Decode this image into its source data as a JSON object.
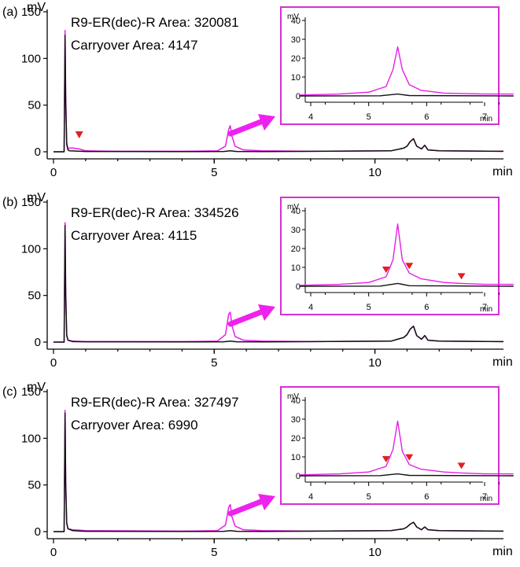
{
  "colors": {
    "sample": "#e81ee8",
    "carryover": "#111111",
    "inset_border": "#d530d5",
    "arrow": "#ee22ee",
    "marker": "#e02020"
  },
  "chart_data": [
    {
      "panel_label": "(a)",
      "type": "line",
      "ylabel": "mV",
      "xlabel": "min",
      "xlim": [
        0,
        14
      ],
      "ylim": [
        -5,
        155
      ],
      "xticks": [
        0,
        5,
        10
      ],
      "yticks": [
        0,
        50,
        100,
        150
      ],
      "annotations": [
        "R9-ER(dec)-R Area: 320081",
        "Carryover Area: 4147"
      ],
      "series": [
        {
          "name": "R9-ER(dec)-R",
          "x": [
            0,
            0.33,
            0.36,
            0.38,
            0.41,
            0.45,
            0.5,
            0.6,
            0.8,
            1.0,
            2,
            3,
            4,
            5.1,
            5.35,
            5.45,
            5.5,
            5.55,
            5.65,
            5.9,
            6.5,
            8,
            10.5,
            10.9,
            11.0,
            11.1,
            11.2,
            11.3,
            11.45,
            11.55,
            11.65,
            12,
            14
          ],
          "y": [
            0,
            0,
            130,
            60,
            10,
            3,
            4,
            4,
            3,
            1,
            0.5,
            0.5,
            0.5,
            1,
            6,
            24,
            28,
            17,
            6,
            2,
            1,
            0.5,
            1,
            4,
            6,
            11,
            14,
            6,
            3,
            7,
            2,
            1,
            0.5
          ]
        },
        {
          "name": "Carryover",
          "x": [
            0,
            0.33,
            0.36,
            0.38,
            0.41,
            0.45,
            0.5,
            1,
            4,
            5.3,
            5.5,
            5.7,
            6.5,
            10.5,
            10.9,
            11.0,
            11.1,
            11.2,
            11.3,
            11.45,
            11.55,
            11.65,
            12,
            14
          ],
          "y": [
            0,
            0,
            125,
            55,
            8,
            2,
            1,
            0.3,
            0.2,
            0.3,
            1,
            0.3,
            0.2,
            1,
            4,
            6,
            11,
            14,
            6,
            3,
            7,
            2,
            1,
            0.5
          ]
        }
      ],
      "markers_x": [
        0.8
      ],
      "inset": {
        "ylabel": "mV",
        "xlabel": "min",
        "xlim": [
          3.8,
          7.5
        ],
        "ylim": [
          -3,
          43
        ],
        "xticks": [
          4,
          5,
          6,
          7
        ],
        "yticks": [
          0,
          10,
          20,
          30,
          40
        ],
        "series": [
          {
            "name": "R9-ER(dec)-R",
            "x": [
              3.8,
              4.5,
              5.0,
              5.3,
              5.42,
              5.5,
              5.58,
              5.7,
              5.9,
              6.3,
              7.0,
              7.5
            ],
            "y": [
              0.5,
              1,
              2,
              5,
              14,
              26,
              14,
              6,
              3,
              1.5,
              1,
              1
            ]
          },
          {
            "name": "Carryover",
            "x": [
              3.8,
              5.2,
              5.5,
              5.7,
              7.5
            ],
            "y": [
              0,
              0.1,
              1,
              0.2,
              0
            ]
          }
        ],
        "markers_x": []
      }
    },
    {
      "panel_label": "(b)",
      "type": "line",
      "ylabel": "mV",
      "xlabel": "min",
      "xlim": [
        0,
        14
      ],
      "ylim": [
        -5,
        155
      ],
      "xticks": [
        0,
        5,
        10
      ],
      "yticks": [
        0,
        50,
        100,
        150
      ],
      "annotations": [
        "R9-ER(dec)-R Area: 334526",
        "Carryover Area: 4115"
      ],
      "series": [
        {
          "name": "R9-ER(dec)-R",
          "x": [
            0,
            0.33,
            0.36,
            0.38,
            0.41,
            0.45,
            0.6,
            1,
            4,
            5.1,
            5.35,
            5.45,
            5.5,
            5.55,
            5.65,
            5.9,
            6.5,
            8,
            10.5,
            10.9,
            11.0,
            11.1,
            11.2,
            11.3,
            11.45,
            11.55,
            11.65,
            12,
            14
          ],
          "y": [
            0,
            0,
            128,
            55,
            8,
            2,
            1,
            0.5,
            0.5,
            1,
            8,
            30,
            32,
            18,
            6,
            2,
            1,
            0.5,
            1,
            5,
            8,
            14,
            17,
            7,
            3,
            7,
            2,
            1,
            0.5
          ]
        },
        {
          "name": "Carryover",
          "x": [
            0,
            0.33,
            0.36,
            0.38,
            0.41,
            0.45,
            0.6,
            1,
            4,
            5.3,
            5.5,
            5.7,
            6.5,
            10.5,
            10.9,
            11.0,
            11.1,
            11.2,
            11.3,
            11.45,
            11.55,
            11.65,
            12,
            14
          ],
          "y": [
            0,
            0,
            125,
            52,
            7,
            2,
            0.5,
            0.3,
            0.2,
            0.3,
            1,
            0.3,
            0.2,
            1,
            5,
            8,
            14,
            17,
            7,
            3,
            7,
            2,
            1,
            0.5
          ]
        }
      ],
      "markers_x": [],
      "inset": {
        "ylabel": "mV",
        "xlabel": "min",
        "xlim": [
          3.8,
          7.5
        ],
        "ylim": [
          -3,
          43
        ],
        "xticks": [
          4,
          5,
          6,
          7
        ],
        "yticks": [
          0,
          10,
          20,
          30,
          40
        ],
        "series": [
          {
            "name": "R9-ER(dec)-R",
            "x": [
              3.8,
              4.5,
              5.0,
              5.3,
              5.42,
              5.5,
              5.58,
              5.7,
              5.9,
              6.3,
              6.6,
              7.0,
              7.5
            ],
            "y": [
              0.5,
              1,
              2,
              5,
              14,
              33,
              14,
              7,
              4,
              2,
              1.5,
              1,
              1
            ]
          },
          {
            "name": "Carryover",
            "x": [
              3.8,
              5.2,
              5.5,
              5.7,
              7.5
            ],
            "y": [
              0,
              0.1,
              1.5,
              0.3,
              0
            ]
          }
        ],
        "markers_x": [
          5.3,
          5.7,
          6.6
        ]
      }
    },
    {
      "panel_label": "(c)",
      "type": "line",
      "ylabel": "mV",
      "xlabel": "min",
      "xlim": [
        0,
        14
      ],
      "ylim": [
        -5,
        155
      ],
      "xticks": [
        0,
        5,
        10
      ],
      "yticks": [
        0,
        50,
        100,
        150
      ],
      "annotations": [
        "R9-ER(dec)-R Area: 327497",
        "Carryover Area: 6990"
      ],
      "series": [
        {
          "name": "R9-ER(dec)-R",
          "x": [
            0,
            0.33,
            0.36,
            0.38,
            0.41,
            0.45,
            0.6,
            1,
            4,
            5.1,
            5.35,
            5.45,
            5.5,
            5.55,
            5.65,
            5.9,
            6.5,
            8,
            10.5,
            10.9,
            11.0,
            11.1,
            11.2,
            11.3,
            11.45,
            11.55,
            11.65,
            12,
            14
          ],
          "y": [
            0,
            0,
            130,
            55,
            10,
            3,
            2,
            1,
            0.5,
            1,
            7,
            26,
            29,
            16,
            6,
            2,
            1,
            0.5,
            1,
            3,
            5,
            8,
            10,
            5,
            2,
            5,
            2,
            1,
            0.5
          ]
        },
        {
          "name": "Carryover",
          "x": [
            0,
            0.33,
            0.36,
            0.38,
            0.41,
            0.45,
            0.6,
            1,
            4,
            5.3,
            5.5,
            5.7,
            6.5,
            10.5,
            10.9,
            11.0,
            11.1,
            11.2,
            11.3,
            11.45,
            11.55,
            11.65,
            12,
            14
          ],
          "y": [
            0,
            0,
            127,
            52,
            9,
            3,
            1,
            0.3,
            0.2,
            0.3,
            1,
            0.3,
            0.2,
            1,
            3,
            5,
            8,
            10,
            5,
            2,
            5,
            2,
            1,
            0.5
          ]
        }
      ],
      "markers_x": [],
      "inset": {
        "ylabel": "mV",
        "xlabel": "min",
        "xlim": [
          3.8,
          7.5
        ],
        "ylim": [
          -3,
          43
        ],
        "xticks": [
          4,
          5,
          6,
          7
        ],
        "yticks": [
          0,
          10,
          20,
          30,
          40
        ],
        "series": [
          {
            "name": "R9-ER(dec)-R",
            "x": [
              3.8,
              4.5,
              5.0,
              5.3,
              5.42,
              5.5,
              5.58,
              5.7,
              5.9,
              6.3,
              6.6,
              7.0,
              7.5
            ],
            "y": [
              0.5,
              1,
              2,
              5,
              14,
              29,
              13,
              6,
              3.5,
              2,
              1.5,
              1,
              1
            ]
          },
          {
            "name": "Carryover",
            "x": [
              3.8,
              5.2,
              5.5,
              5.7,
              7.5
            ],
            "y": [
              0,
              0.1,
              1,
              0.2,
              0
            ]
          }
        ],
        "markers_x": [
          5.3,
          5.7,
          6.6
        ]
      }
    }
  ]
}
